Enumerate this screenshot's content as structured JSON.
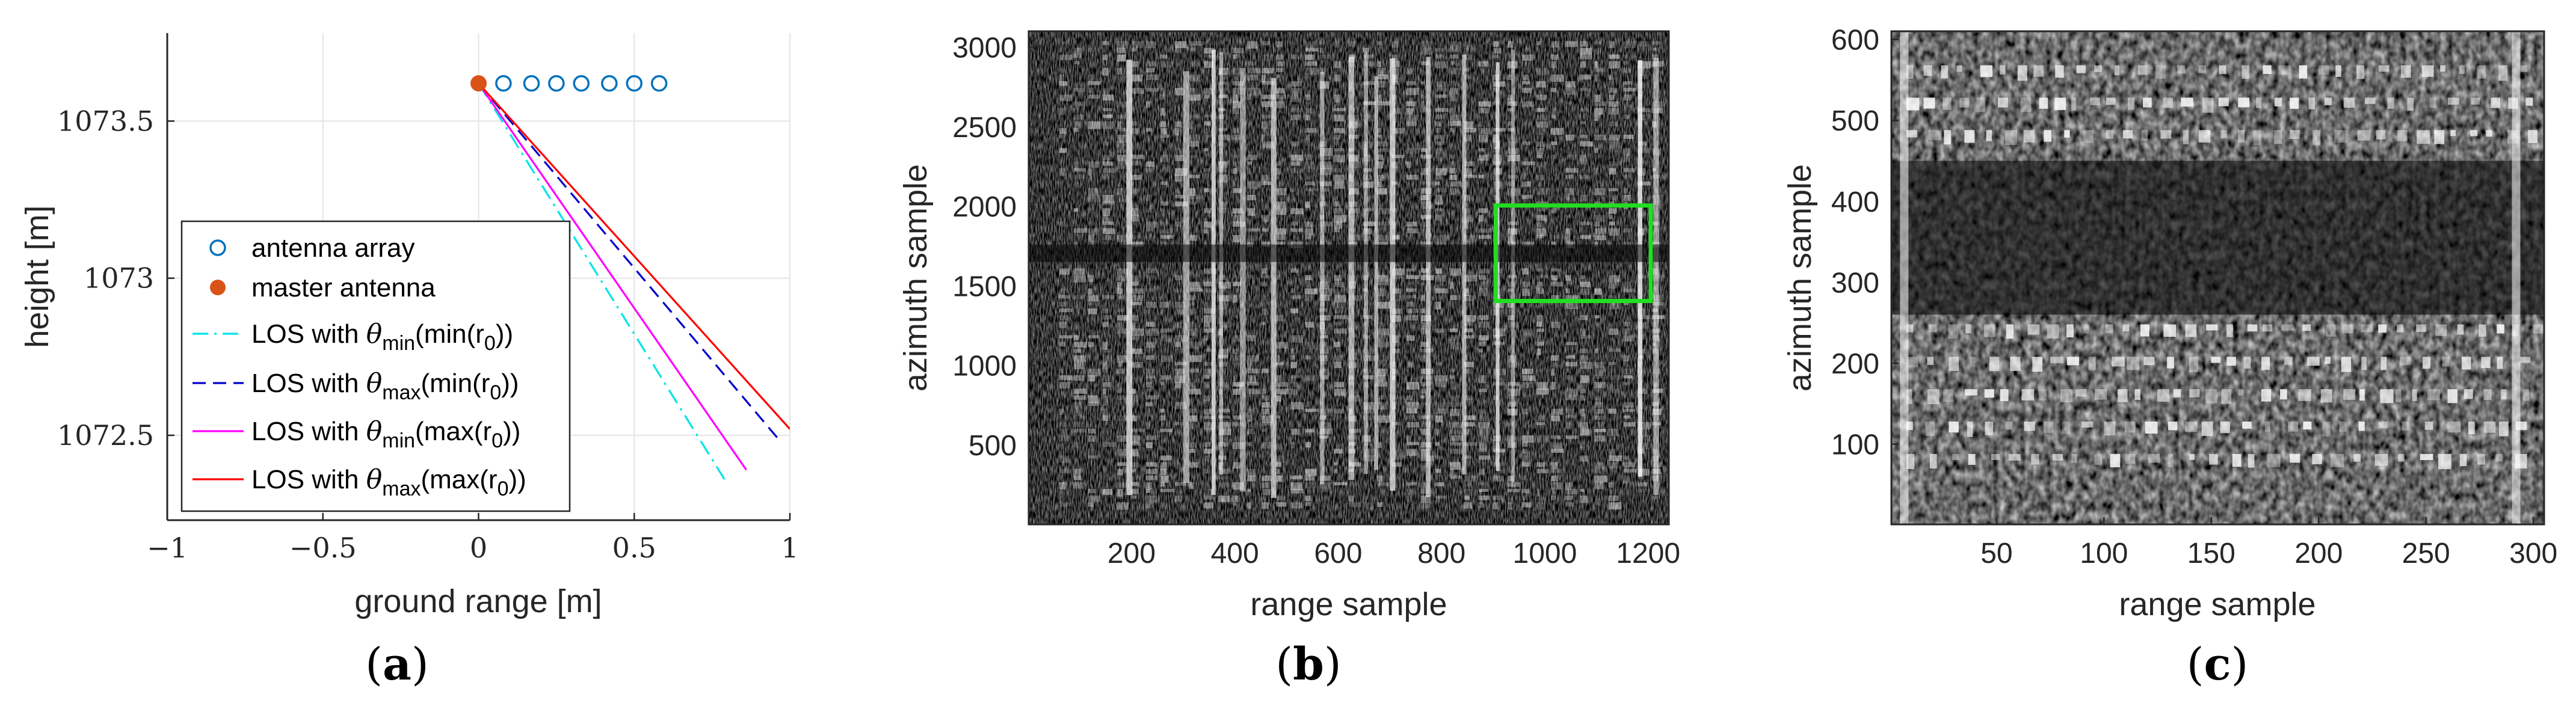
{
  "panels": [
    {
      "caption_open": "(",
      "caption_letter": "a",
      "caption_close": ")"
    },
    {
      "caption_open": "(",
      "caption_letter": "b",
      "caption_close": ")"
    },
    {
      "caption_open": "(",
      "caption_letter": "c",
      "caption_close": ")"
    }
  ],
  "chart_data": [
    {
      "type": "line",
      "xlabel": "ground range [m]",
      "ylabel": "height [m]",
      "xlim": [
        -1,
        1
      ],
      "ylim": [
        1072.23,
        1073.78
      ],
      "xticks": [
        "−1",
        "−0.5",
        "0",
        "0.5",
        "1"
      ],
      "xtick_values": [
        -1,
        -0.5,
        0,
        0.5,
        1
      ],
      "yticks": [
        "1072.5",
        "1073",
        "1073.5"
      ],
      "ytick_values": [
        1072.5,
        1073,
        1073.5
      ],
      "grid": true,
      "legend_position": "lower-left",
      "series": [
        {
          "name": "antenna array",
          "style": "scatter-open-circle",
          "color": "#0072BD",
          "x": [
            0.08,
            0.17,
            0.25,
            0.33,
            0.42,
            0.5,
            0.58
          ],
          "y": [
            1073.62,
            1073.62,
            1073.62,
            1073.62,
            1073.62,
            1073.62,
            1073.62
          ]
        },
        {
          "name": "master antenna",
          "style": "scatter-filled-circle",
          "color": "#D95319",
          "x": [
            0
          ],
          "y": [
            1073.62
          ]
        },
        {
          "name_prefix": "LOS with ",
          "name_theta": "θ",
          "name_sub": "min",
          "name_fn": "(min(r",
          "name_r_sub": "0",
          "name_end": "))",
          "style": "dash-dot",
          "color": "#00E5E5",
          "x": [
            0,
            0.79
          ],
          "y": [
            1073.62,
            1072.36
          ]
        },
        {
          "name_prefix": "LOS with ",
          "name_theta": "θ",
          "name_sub": "max",
          "name_fn": "(min(r",
          "name_r_sub": "0",
          "name_end": "))",
          "style": "dashed",
          "color": "#0000CC",
          "x": [
            0,
            0.97
          ],
          "y": [
            1073.62,
            1072.48
          ]
        },
        {
          "name_prefix": "LOS with ",
          "name_theta": "θ",
          "name_sub": "min",
          "name_fn": "(max(r",
          "name_r_sub": "0",
          "name_end": "))",
          "style": "solid",
          "color": "#FF00FF",
          "x": [
            0,
            0.86
          ],
          "y": [
            1073.62,
            1072.39
          ]
        },
        {
          "name_prefix": "LOS with ",
          "name_theta": "θ",
          "name_sub": "max",
          "name_fn": "(max(r",
          "name_r_sub": "0",
          "name_end": "))",
          "style": "solid",
          "color": "#FF0000",
          "x": [
            0,
            1.0
          ],
          "y": [
            1073.62,
            1072.52
          ]
        }
      ]
    },
    {
      "type": "heatmap",
      "xlabel": "range sample",
      "ylabel": "azimuth sample",
      "xlim": [
        1,
        1240
      ],
      "ylim": [
        1,
        3100
      ],
      "xticks": [
        "200",
        "400",
        "600",
        "800",
        "1000",
        "1200"
      ],
      "xtick_values": [
        200,
        400,
        600,
        800,
        1000,
        1200
      ],
      "yticks": [
        "500",
        "1000",
        "1500",
        "2000",
        "2500",
        "3000"
      ],
      "ytick_values": [
        500,
        1000,
        1500,
        2000,
        2500,
        3000
      ],
      "colormap": "gray",
      "bright_columns": [
        190,
        300,
        355,
        370,
        410,
        470,
        565,
        620,
        650,
        670,
        700,
        770,
        840,
        905,
        935,
        1180,
        1210
      ],
      "dark_band_azimuth": [
        1650,
        1760
      ],
      "highlight_box": {
        "x": [
          905,
          1205
        ],
        "y": [
          1405,
          2005
        ],
        "color": "#22DD22"
      }
    },
    {
      "type": "heatmap",
      "xlabel": "range sample",
      "ylabel": "azimuth sample",
      "xlim": [
        1,
        305
      ],
      "ylim": [
        1,
        610
      ],
      "xticks": [
        "50",
        "100",
        "150",
        "200",
        "250",
        "300"
      ],
      "xtick_values": [
        50,
        100,
        150,
        200,
        250,
        300
      ],
      "yticks": [
        "100",
        "200",
        "300",
        "400",
        "500",
        "600"
      ],
      "ytick_values": [
        100,
        200,
        300,
        400,
        500,
        600
      ],
      "colormap": "gray",
      "bright_rows": [
        80,
        120,
        160,
        200,
        240,
        480,
        520,
        560
      ],
      "dark_region_azimuth": [
        260,
        450
      ],
      "bright_columns": [
        5,
        290
      ]
    }
  ]
}
